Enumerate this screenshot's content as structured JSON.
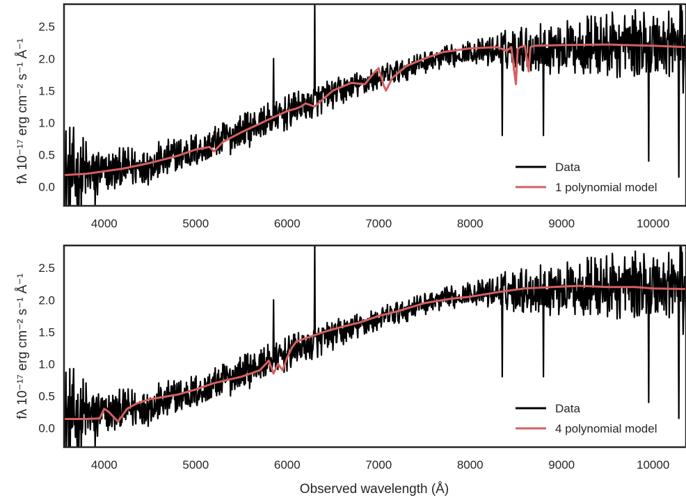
{
  "colors": {
    "data": "#000000",
    "model": "#d65f5f",
    "frame": "#262626",
    "text": "#262626"
  },
  "figure": {
    "xlabel": "Observed wavelength (Å)",
    "ylabel": "fλ 10⁻¹⁷ erg cm⁻² s⁻¹ Å⁻¹"
  },
  "chart_data": [
    {
      "type": "line",
      "title": "",
      "xlabel": "",
      "ylabel": "fλ 10⁻¹⁷ erg cm⁻² s⁻¹ Å⁻¹",
      "xlim": [
        3560,
        10360
      ],
      "ylim": [
        -0.3,
        2.85
      ],
      "grid": false,
      "legend_position": "lower-right",
      "x_ticks": [
        4000,
        5000,
        6000,
        7000,
        8000,
        9000,
        10000
      ],
      "y_ticks": [
        0.0,
        0.5,
        1.0,
        1.5,
        2.0,
        2.5
      ],
      "x_tick_labels": [
        "4000",
        "5000",
        "6000",
        "7000",
        "8000",
        "9000",
        "10000"
      ],
      "y_tick_labels": [
        "0.0",
        "0.5",
        "1.0",
        "1.5",
        "2.0",
        "2.5"
      ],
      "series": [
        {
          "name": "Data",
          "color": "#000000",
          "noise_envelope": {
            "x": [
              3560,
              4000,
              5000,
              6000,
              7000,
              8000,
              8500,
              9000,
              10000,
              10360
            ],
            "amplitude": [
              0.9,
              0.35,
              0.3,
              0.28,
              0.2,
              0.18,
              0.35,
              0.45,
              0.6,
              0.8
            ]
          },
          "trend": {
            "x": [
              3560,
              4000,
              4500,
              5000,
              5500,
              6000,
              6500,
              7000,
              7500,
              8000,
              8500,
              9000,
              9500,
              10000,
              10360
            ],
            "y": [
              0.15,
              0.22,
              0.35,
              0.55,
              0.85,
              1.15,
              1.45,
              1.7,
              1.95,
              2.1,
              2.15,
              2.18,
              2.2,
              2.2,
              2.2
            ]
          },
          "features": [
            {
              "x": 6300,
              "y": 2.85
            },
            {
              "x": 5850,
              "y": 2.0
            },
            {
              "x": 8350,
              "y": 0.8
            },
            {
              "x": 8800,
              "y": 0.8
            },
            {
              "x": 9950,
              "y": 0.4
            },
            {
              "x": 10280,
              "y": 0.15
            },
            {
              "x": 3620,
              "y": -0.3
            },
            {
              "x": 3900,
              "y": -0.3
            }
          ]
        },
        {
          "name": "1 polynomial model",
          "color": "#d65f5f",
          "x": [
            3560,
            3800,
            4000,
            4200,
            4500,
            4800,
            5000,
            5150,
            5200,
            5300,
            5500,
            5800,
            6000,
            6100,
            6150,
            6200,
            6300,
            6500,
            6700,
            6850,
            6950,
            7000,
            7050,
            7080,
            7150,
            7300,
            7500,
            7700,
            8000,
            8300,
            8400,
            8450,
            8500,
            8520,
            8550,
            8600,
            8640,
            8660,
            8700,
            9000,
            9500,
            10000,
            10360
          ],
          "y": [
            0.18,
            0.2,
            0.24,
            0.28,
            0.37,
            0.48,
            0.58,
            0.62,
            0.55,
            0.7,
            0.85,
            1.05,
            1.18,
            1.22,
            1.25,
            1.3,
            1.25,
            1.5,
            1.62,
            1.6,
            1.78,
            1.85,
            1.6,
            1.5,
            1.7,
            1.88,
            2.0,
            2.1,
            2.16,
            2.18,
            2.12,
            2.18,
            1.6,
            2.15,
            2.18,
            2.2,
            1.8,
            2.18,
            2.2,
            2.21,
            2.22,
            2.2,
            2.18
          ]
        }
      ]
    },
    {
      "type": "line",
      "title": "",
      "xlabel": "Observed wavelength (Å)",
      "ylabel": "fλ 10⁻¹⁷ erg cm⁻² s⁻¹ Å⁻¹",
      "xlim": [
        3560,
        10360
      ],
      "ylim": [
        -0.3,
        2.85
      ],
      "grid": false,
      "legend_position": "lower-right",
      "x_ticks": [
        4000,
        5000,
        6000,
        7000,
        8000,
        9000,
        10000
      ],
      "y_ticks": [
        0.0,
        0.5,
        1.0,
        1.5,
        2.0,
        2.5
      ],
      "x_tick_labels": [
        "4000",
        "5000",
        "6000",
        "7000",
        "8000",
        "9000",
        "10000"
      ],
      "y_tick_labels": [
        "0.0",
        "0.5",
        "1.0",
        "1.5",
        "2.0",
        "2.5"
      ],
      "series": [
        {
          "name": "Data",
          "color": "#000000",
          "noise_envelope": {
            "x": [
              3560,
              4000,
              5000,
              6000,
              7000,
              8000,
              8500,
              9000,
              10000,
              10360
            ],
            "amplitude": [
              0.9,
              0.35,
              0.3,
              0.28,
              0.2,
              0.18,
              0.35,
              0.45,
              0.6,
              0.8
            ]
          },
          "trend": {
            "x": [
              3560,
              4000,
              4500,
              5000,
              5500,
              6000,
              6500,
              7000,
              7500,
              8000,
              8500,
              9000,
              9500,
              10000,
              10360
            ],
            "y": [
              0.15,
              0.22,
              0.35,
              0.55,
              0.85,
              1.15,
              1.45,
              1.7,
              1.95,
              2.1,
              2.15,
              2.18,
              2.2,
              2.2,
              2.2
            ]
          },
          "features": [
            {
              "x": 6300,
              "y": 2.85
            },
            {
              "x": 5850,
              "y": 2.0
            },
            {
              "x": 8350,
              "y": 0.8
            },
            {
              "x": 8800,
              "y": 0.8
            },
            {
              "x": 9950,
              "y": 0.4
            },
            {
              "x": 10280,
              "y": 0.15
            },
            {
              "x": 3620,
              "y": -0.3
            },
            {
              "x": 3900,
              "y": -0.3
            }
          ]
        },
        {
          "name": "4 polynomial model",
          "color": "#d65f5f",
          "x": [
            3560,
            3800,
            3950,
            4000,
            4050,
            4150,
            4250,
            4350,
            4500,
            4800,
            5000,
            5200,
            5500,
            5700,
            5800,
            5850,
            5900,
            5950,
            6000,
            6050,
            6100,
            6200,
            6400,
            6600,
            6800,
            7000,
            7200,
            7500,
            7800,
            8000,
            8300,
            8600,
            8900,
            9200,
            9500,
            9800,
            10000,
            10360
          ],
          "y": [
            0.14,
            0.14,
            0.15,
            0.3,
            0.25,
            0.1,
            0.3,
            0.38,
            0.45,
            0.52,
            0.6,
            0.7,
            0.8,
            0.9,
            1.05,
            0.85,
            1.0,
            0.9,
            1.1,
            1.25,
            1.35,
            1.4,
            1.5,
            1.58,
            1.65,
            1.75,
            1.82,
            1.95,
            2.02,
            2.05,
            2.12,
            2.18,
            2.2,
            2.22,
            2.2,
            2.2,
            2.18,
            2.17
          ]
        }
      ]
    }
  ]
}
